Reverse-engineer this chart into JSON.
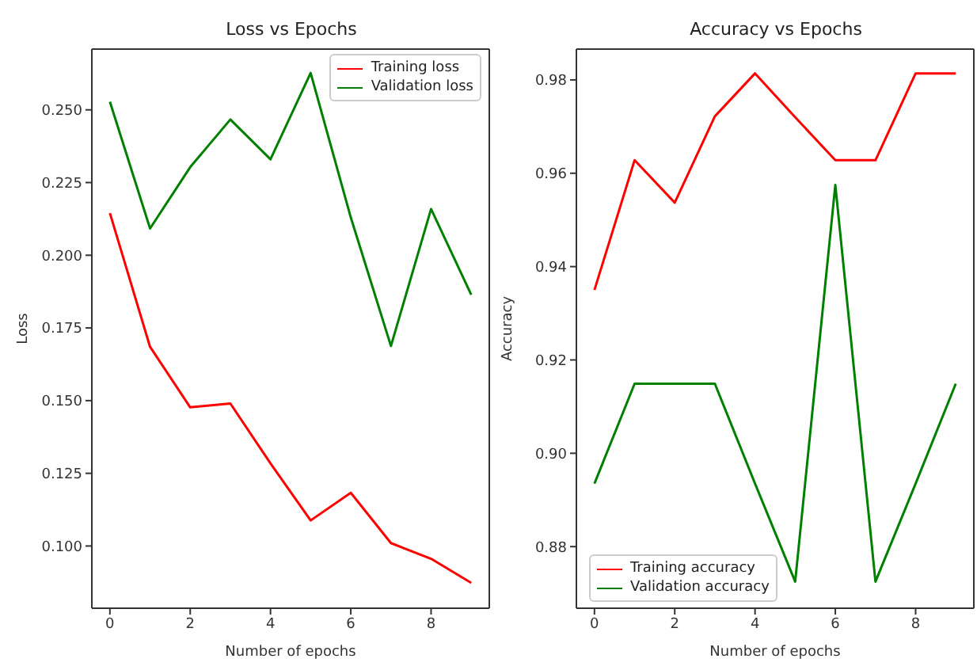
{
  "chart_data": [
    {
      "type": "line",
      "title": "Loss vs Epochs",
      "xlabel": "Number of epochs",
      "ylabel": "Loss",
      "x": [
        0,
        1,
        2,
        3,
        4,
        5,
        6,
        7,
        8,
        9
      ],
      "xlim": [
        -0.45,
        9.45
      ],
      "xticks": [
        0,
        2,
        4,
        6,
        8
      ],
      "ylim": [
        0.0786,
        0.2709
      ],
      "yticks": [
        {
          "value": 0.1,
          "label": "0.100"
        },
        0.125,
        {
          "value": 0.15,
          "label": "0.150"
        },
        0.175,
        {
          "value": 0.2,
          "label": "0.200"
        },
        0.225,
        {
          "value": 0.25,
          "label": "0.250"
        }
      ],
      "grid": false,
      "legend": "top right",
      "marker": "none",
      "line_style": "solid",
      "series": [
        {
          "name": "Training loss",
          "color": "#ff0000",
          "values": [
            0.2145,
            0.1685,
            0.1477,
            0.149,
            0.1284,
            0.1088,
            0.1183,
            0.101,
            0.0956,
            0.0873
          ]
        },
        {
          "name": "Validation loss",
          "color": "#008000",
          "values": [
            0.2528,
            0.2092,
            0.2303,
            0.2467,
            0.233,
            0.2627,
            0.213,
            0.1688,
            0.2159,
            0.1864
          ]
        }
      ]
    },
    {
      "type": "line",
      "title": "Accuracy vs Epochs",
      "xlabel": "Number of epochs",
      "ylabel": "Accuracy",
      "x": [
        0,
        1,
        2,
        3,
        4,
        5,
        6,
        7,
        8,
        9
      ],
      "xlim": [
        -0.45,
        9.45
      ],
      "xticks": [
        0,
        2,
        4,
        6,
        8
      ],
      "ylim": [
        0.8668,
        0.9866
      ],
      "yticks": [
        0.88,
        {
          "value": 0.9,
          "label": "0.90"
        },
        0.92,
        0.94,
        0.96,
        0.98
      ],
      "grid": false,
      "legend": "bottom left",
      "marker": "none",
      "line_style": "solid",
      "series": [
        {
          "name": "Training accuracy",
          "color": "#ff0000",
          "values": [
            0.935,
            0.9628,
            0.9537,
            0.9722,
            0.9814,
            0.972,
            0.9628,
            0.9628,
            0.9814,
            0.9814
          ]
        },
        {
          "name": "Validation accuracy",
          "color": "#008000",
          "values": [
            0.8935,
            0.9149,
            0.9149,
            0.9149,
            0.8935,
            0.8725,
            0.9575,
            0.8725,
            0.8935,
            0.9149
          ]
        }
      ]
    }
  ]
}
